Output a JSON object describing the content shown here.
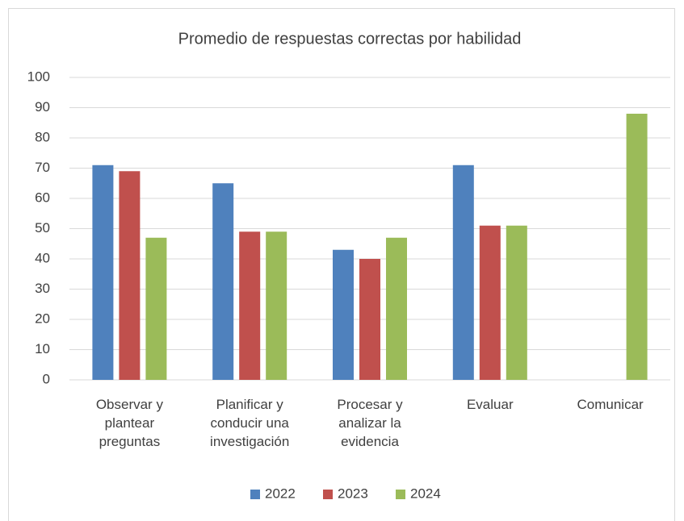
{
  "chart_data": {
    "type": "bar",
    "title": "Promedio de respuestas correctas por habilidad",
    "categories": [
      "Observar y plantear preguntas",
      "Planificar y conducir una investigación",
      "Procesar y analizar la evidencia",
      "Evaluar",
      "Comunicar"
    ],
    "series": [
      {
        "name": "2022",
        "color": "#4f81bd",
        "values": [
          71,
          65,
          43,
          71,
          null
        ]
      },
      {
        "name": "2023",
        "color": "#c0504d",
        "values": [
          69,
          49,
          40,
          51,
          null
        ]
      },
      {
        "name": "2024",
        "color": "#9bbb59",
        "values": [
          47,
          49,
          47,
          51,
          88
        ]
      }
    ],
    "ylim": [
      0,
      100
    ],
    "yticks": [
      0,
      10,
      20,
      30,
      40,
      50,
      60,
      70,
      80,
      90,
      100
    ],
    "grid": true,
    "legend": "bottom"
  }
}
